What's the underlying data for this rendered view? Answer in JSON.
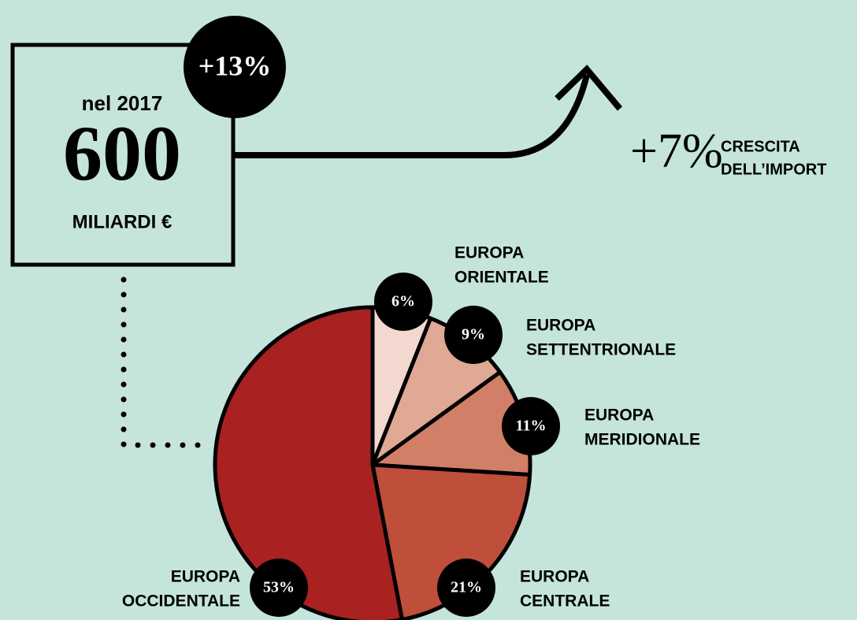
{
  "chart_data": {
    "type": "pie",
    "headline": {
      "year": "nel 2017",
      "amount": "600",
      "unit": "MILIARDI €",
      "growth": "+13%"
    },
    "import_growth": {
      "value": "+7%",
      "label": [
        "CRESCITA",
        "DELL’IMPORT"
      ]
    },
    "categories": [
      [
        "EUROPA",
        "ORIENTALE"
      ],
      [
        "EUROPA",
        "SETTENTRIONALE"
      ],
      [
        "EUROPA",
        "MERIDIONALE"
      ],
      [
        "EUROPA",
        "CENTRALE"
      ],
      [
        "EUROPA",
        "OCCIDENTALE"
      ]
    ],
    "values": [
      6,
      9,
      11,
      21,
      53
    ],
    "value_labels": [
      "6%",
      "9%",
      "11%",
      "21%",
      "53%"
    ],
    "colors": [
      "#f2d8cf",
      "#dfa996",
      "#d17f66",
      "#bf4e3a",
      "#a92121"
    ]
  }
}
